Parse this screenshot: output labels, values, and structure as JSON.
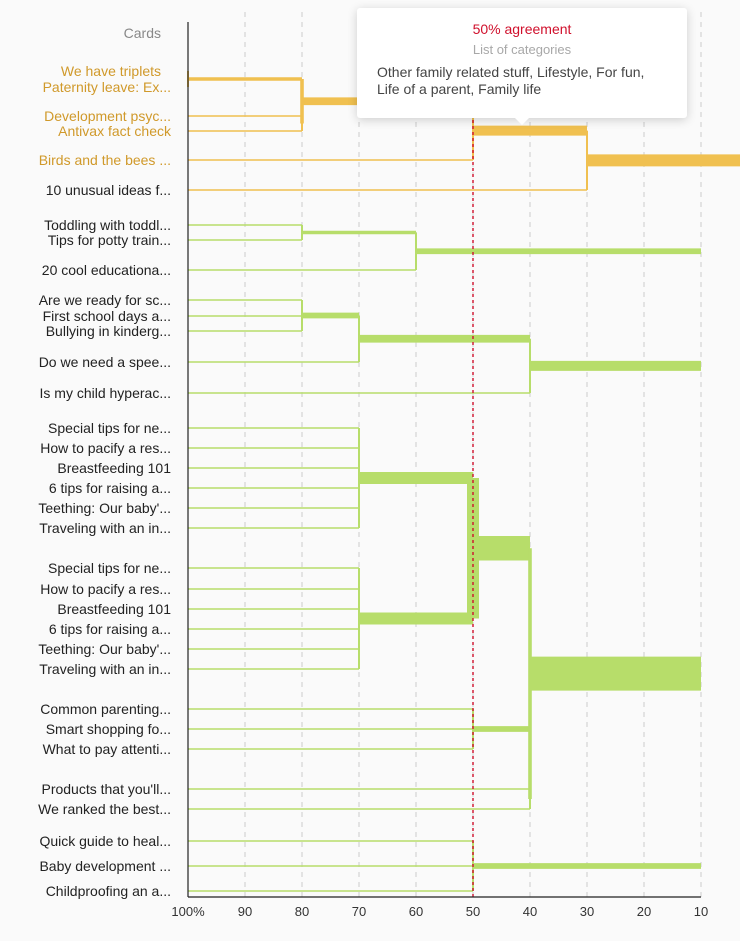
{
  "chart_data": {
    "type": "dendrogram",
    "title": "",
    "row_header": "Cards",
    "xlabel": "",
    "ylabel": "",
    "x_axis": {
      "ticks": [
        "100%",
        "90",
        "80",
        "70",
        "60",
        "50",
        "40",
        "30",
        "20",
        "10"
      ],
      "range": [
        100,
        10
      ],
      "grid": "dashed"
    },
    "threshold": 50,
    "colors": {
      "highlight": "#f0c050",
      "highlight_node": "#ecb645",
      "normal": "#b7dd6a",
      "threshold_line": "#d0102c",
      "axis": "#222222",
      "grid": "#cccccc",
      "header": "#888888"
    },
    "rows": [
      {
        "label": "We have triplets",
        "highlight": true
      },
      {
        "label": "Paternity leave: Ex...",
        "highlight": true
      },
      {
        "label": "Development psyc...",
        "highlight": true
      },
      {
        "label": "Antivax fact check",
        "highlight": true
      },
      {
        "label": "Birds and the bees ...",
        "highlight": true
      },
      {
        "label": "10 unusual ideas f...",
        "highlight": false
      },
      {
        "label": "Toddling with toddl...",
        "highlight": false
      },
      {
        "label": "Tips for potty train...",
        "highlight": false
      },
      {
        "label": "20 cool educationa...",
        "highlight": false
      },
      {
        "label": "Are we ready for sc...",
        "highlight": false
      },
      {
        "label": "First school days a...",
        "highlight": false
      },
      {
        "label": "Bullying in kinderg...",
        "highlight": false
      },
      {
        "label": "Do we need a spee...",
        "highlight": false
      },
      {
        "label": "Is my child hyperac...",
        "highlight": false
      },
      {
        "label": "Special tips for ne...",
        "highlight": false
      },
      {
        "label": "How to pacify a res...",
        "highlight": false
      },
      {
        "label": "Breastfeeding 101",
        "highlight": false
      },
      {
        "label": "6 tips for raising a...",
        "highlight": false
      },
      {
        "label": "Teething: Our baby'...",
        "highlight": false
      },
      {
        "label": "Traveling with an in...",
        "highlight": false
      },
      {
        "label": "Special tips for ne...",
        "highlight": false
      },
      {
        "label": "How to pacify a res...",
        "highlight": false
      },
      {
        "label": "Breastfeeding 101",
        "highlight": false
      },
      {
        "label": "6 tips for raising a...",
        "highlight": false
      },
      {
        "label": "Teething: Our baby'...",
        "highlight": false
      },
      {
        "label": "Traveling with an in...",
        "highlight": false
      },
      {
        "label": "Common parenting...",
        "highlight": false
      },
      {
        "label": "Smart shopping fo...",
        "highlight": false
      },
      {
        "label": "What to pay attenti...",
        "highlight": false
      },
      {
        "label": "Products that you'll...",
        "highlight": false
      },
      {
        "label": "We ranked the best...",
        "highlight": false
      },
      {
        "label": "Quick guide to heal...",
        "highlight": false
      },
      {
        "label": "Baby development ...",
        "highlight": false
      },
      {
        "label": "Childproofing an a...",
        "highlight": false
      }
    ],
    "merges": [
      {
        "rows": [
          0,
          1
        ],
        "agreement": 100,
        "size": 2,
        "highlight": true
      },
      {
        "rows": [
          2,
          3
        ],
        "agreement": 80,
        "size": 2,
        "highlight": true
      },
      {
        "rows": [
          0,
          1,
          2,
          3
        ],
        "agreement": 80,
        "size": 4,
        "highlight": true
      },
      {
        "rows": [
          0,
          1,
          2,
          3,
          4
        ],
        "agreement": 50,
        "size": 5,
        "highlight": true
      },
      {
        "rows": [
          0,
          1,
          2,
          3,
          4,
          5
        ],
        "agreement": 30,
        "size": 6,
        "highlight": true
      },
      {
        "rows": [
          6,
          7
        ],
        "agreement": 80,
        "size": 2,
        "highlight": false
      },
      {
        "rows": [
          6,
          7,
          8
        ],
        "agreement": 60,
        "size": 3,
        "highlight": false
      },
      {
        "rows": [
          9,
          10,
          11
        ],
        "agreement": 80,
        "size": 3,
        "highlight": false
      },
      {
        "rows": [
          9,
          10,
          11,
          12
        ],
        "agreement": 70,
        "size": 4,
        "highlight": false
      },
      {
        "rows": [
          9,
          10,
          11,
          12,
          13
        ],
        "agreement": 40,
        "size": 5,
        "highlight": false
      },
      {
        "rows": [
          14,
          15,
          16,
          17,
          18,
          19
        ],
        "agreement": 70,
        "size": 6,
        "highlight": false
      },
      {
        "rows": [
          20,
          21,
          22,
          23,
          24,
          25
        ],
        "agreement": 70,
        "size": 6,
        "highlight": false
      },
      {
        "rows": [
          14,
          15,
          16,
          17,
          18,
          19,
          20,
          21,
          22,
          23,
          24,
          25
        ],
        "agreement": 50,
        "size": 12,
        "highlight": false
      },
      {
        "rows": [
          26,
          27,
          28
        ],
        "agreement": 50,
        "size": 3,
        "highlight": false
      },
      {
        "rows": [
          29,
          30
        ],
        "agreement": 40,
        "size": 2,
        "highlight": false
      },
      {
        "rows": [
          14,
          15,
          16,
          17,
          18,
          19,
          20,
          21,
          22,
          23,
          24,
          25,
          26,
          27,
          28,
          29,
          30
        ],
        "agreement": 40,
        "size": 17,
        "highlight": false
      },
      {
        "rows": [
          31,
          32,
          33
        ],
        "agreement": 50,
        "size": 3,
        "highlight": false
      }
    ]
  },
  "tooltip": {
    "title": "50% agreement",
    "subtitle": "List of categories",
    "body": "Other family related stuff, Lifestyle, For fun, Life of a parent, Family life"
  }
}
